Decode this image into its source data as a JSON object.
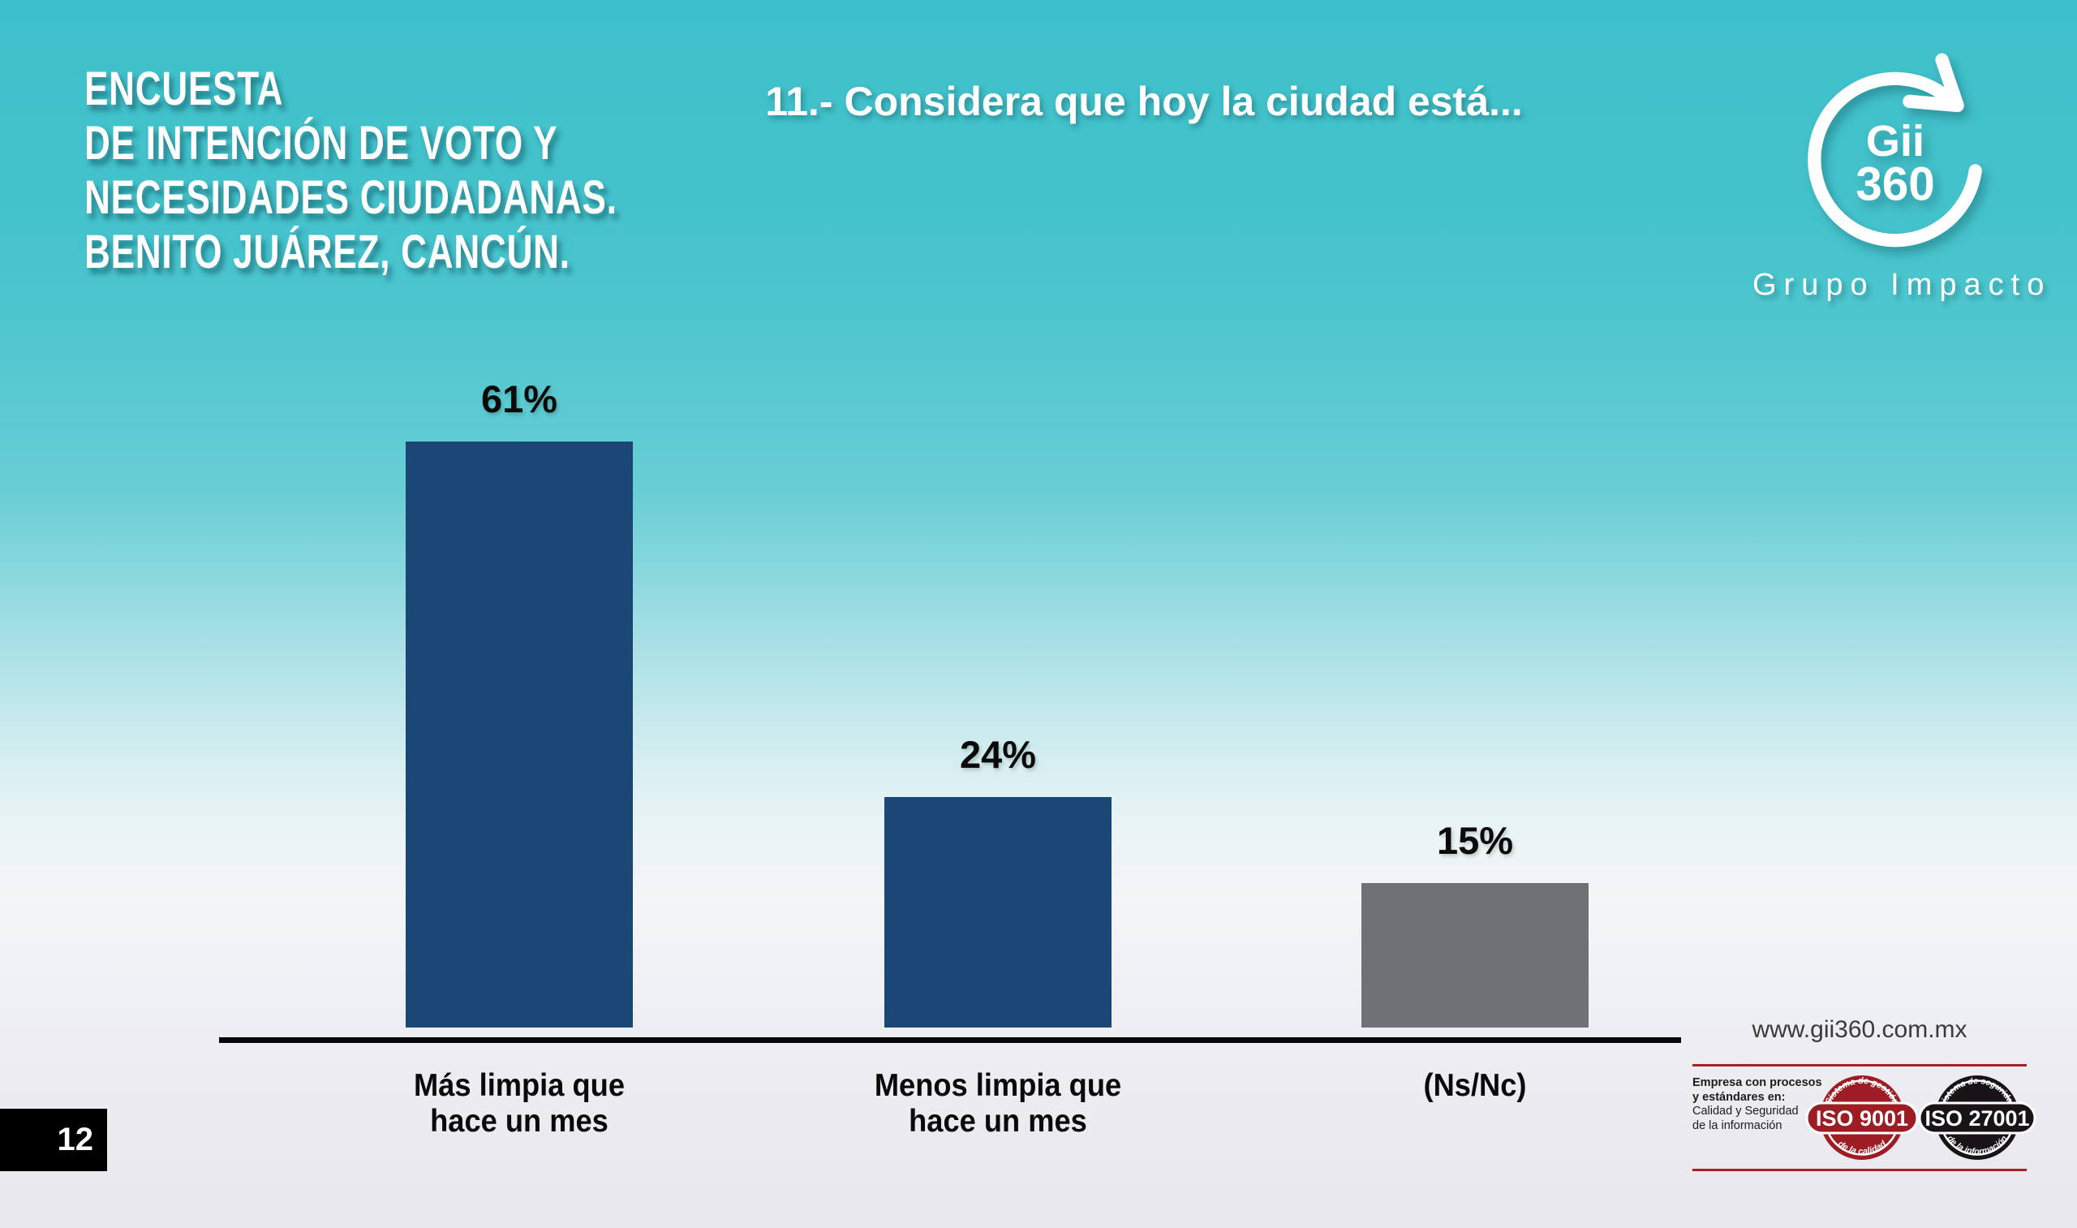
{
  "slide": {
    "header_title_lines": [
      "ENCUESTA",
      "DE INTENCIÓN DE VOTO Y",
      "NECESIDADES CIUDADANAS.",
      "BENITO JUÁREZ, CANCÚN."
    ],
    "question": "11.- Considera que hoy la ciudad está...",
    "page_number": "12"
  },
  "logo": {
    "brand_top": "Gii",
    "brand_bottom": "360",
    "company": "Grupo Impacto"
  },
  "chart_data": {
    "type": "bar",
    "title": "11.- Considera que hoy la ciudad está...",
    "categories": [
      "Más limpia que\nhace un mes",
      "Menos limpia que\nhace un mes",
      "(Ns/Nc)"
    ],
    "values": [
      61,
      24,
      15
    ],
    "value_labels": [
      "61%",
      "24%",
      "15%"
    ],
    "unit": "%",
    "ylim": [
      0,
      100
    ],
    "grid": false,
    "legend": false,
    "bar_colors": [
      "#1b4777",
      "#1b4777",
      "#6e7275"
    ],
    "axis_color": "#060606"
  },
  "footer": {
    "website": "www.gii360.com.mx",
    "tagline_bold_1": "Empresa con procesos",
    "tagline_bold_2": "y estándares en:",
    "tagline_rest_1": "Calidad y Seguridad",
    "tagline_rest_2": "de la información",
    "badges": [
      {
        "name": "ISO 9001",
        "center": "ISO 9001",
        "top": "Sistema de gestión",
        "bottom": "de la calidad",
        "color": "#9e1c23"
      },
      {
        "name": "ISO 27001",
        "center": "ISO 27001",
        "top": "Sistema de seguridad",
        "bottom": "de la información",
        "color": "#171316"
      }
    ]
  },
  "colors": {
    "background_top": "#3ec0ca",
    "background_bottom": "#e7e7ed",
    "bar_blue": "#1b4777",
    "bar_gray": "#6e7275",
    "accent_red": "#ab2026",
    "text_white": "#ffffff",
    "text_black": "#0a0a0a"
  }
}
